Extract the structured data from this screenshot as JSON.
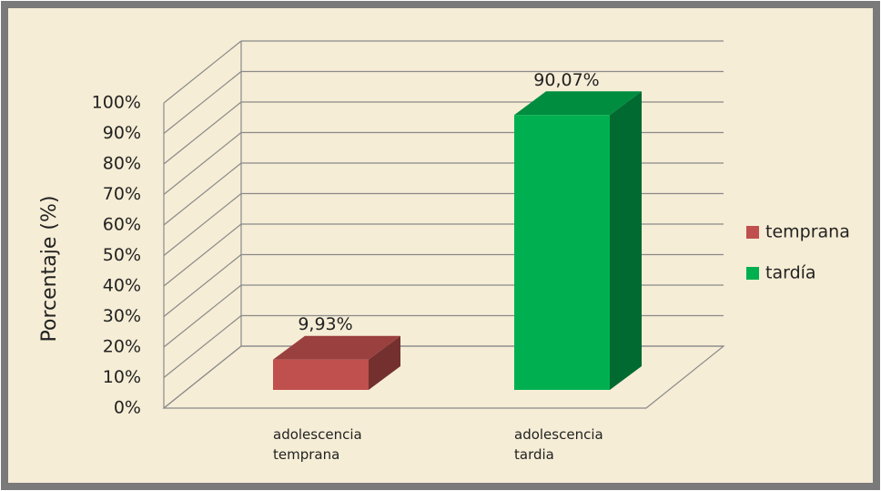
{
  "chart_data": {
    "type": "bar3d",
    "y_label": "Porcentaje (%)",
    "categories": [
      "adolescencia temprana",
      "adolescencia tardia"
    ],
    "series": [
      {
        "name": "temprana",
        "color": "#c0504d",
        "values": [
          9.93,
          null
        ],
        "value_labels": [
          "9,93%",
          null
        ]
      },
      {
        "name": "tardía",
        "color": "#00b050",
        "values": [
          null,
          90.07
        ],
        "value_labels": [
          null,
          "90,07%"
        ]
      }
    ],
    "ylim": [
      0,
      100
    ],
    "yticks": [
      {
        "value": 0,
        "label": "0%"
      },
      {
        "value": 10,
        "label": "10%"
      },
      {
        "value": 20,
        "label": "20%"
      },
      {
        "value": 30,
        "label": "30%"
      },
      {
        "value": 40,
        "label": "40%"
      },
      {
        "value": 50,
        "label": "50%"
      },
      {
        "value": 60,
        "label": "60%"
      },
      {
        "value": 70,
        "label": "70%"
      },
      {
        "value": 80,
        "label": "80%"
      },
      {
        "value": 90,
        "label": "90%"
      },
      {
        "value": 100,
        "label": "100%"
      }
    ],
    "grid": true,
    "legend": "right"
  }
}
